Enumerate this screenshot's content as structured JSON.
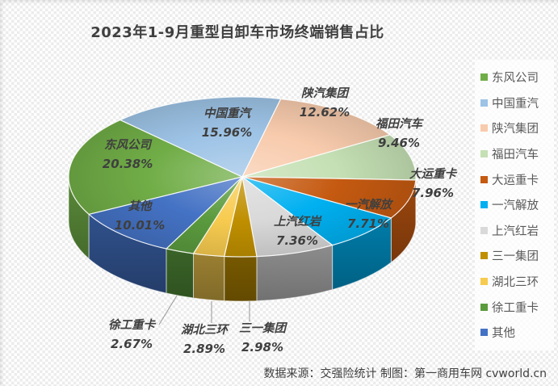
{
  "footer": {
    "source": "数据来源：交强险统计 制图：第一商用车网 cvworld.cn"
  },
  "chart_data": {
    "type": "pie",
    "style": "3d",
    "title": "2023年1-9月重型自卸车市场终端销售占比",
    "unit": "%",
    "legend_position": "right",
    "start_angle_deg": -118,
    "slices": [
      {
        "label": "东风公司",
        "value": 20.38,
        "pct_label": "20.38%",
        "color": "#70AD47"
      },
      {
        "label": "中国重汽",
        "value": 15.96,
        "pct_label": "15.96%",
        "color": "#9DC3E6"
      },
      {
        "label": "陕汽集团",
        "value": 12.62,
        "pct_label": "12.62%",
        "color": "#F8CBAD"
      },
      {
        "label": "福田汽车",
        "value": 9.46,
        "pct_label": "9.46%",
        "color": "#C5E0B4"
      },
      {
        "label": "大运重卡",
        "value": 7.96,
        "pct_label": "7.96%",
        "color": "#C55A11"
      },
      {
        "label": "一汽解放",
        "value": 7.71,
        "pct_label": "7.71%",
        "color": "#00B0F0"
      },
      {
        "label": "上汽红岩",
        "value": 7.36,
        "pct_label": "7.36%",
        "color": "#D9D9D9"
      },
      {
        "label": "三一集团",
        "value": 2.98,
        "pct_label": "2.98%",
        "color": "#BF8F00"
      },
      {
        "label": "湖北三环",
        "value": 2.89,
        "pct_label": "2.89%",
        "color": "#F7CB4F"
      },
      {
        "label": "徐工重卡",
        "value": 2.67,
        "pct_label": "2.67%",
        "color": "#5B9B3E"
      },
      {
        "label": "其他",
        "value": 10.01,
        "pct_label": "10.01%",
        "color": "#4472C4"
      }
    ]
  }
}
